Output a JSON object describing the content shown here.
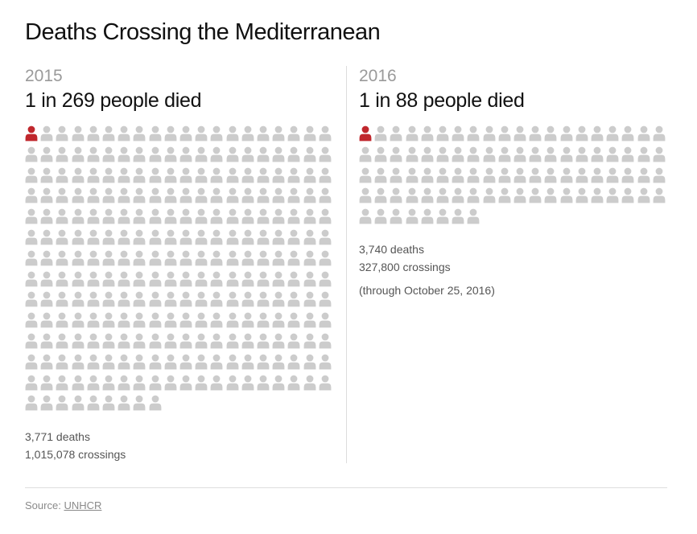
{
  "title": "Deaths Crossing the Mediterranean",
  "colors": {
    "died": "#c0272d",
    "crossed": "#cccccc"
  },
  "panels": [
    {
      "year": "2015",
      "headline": "1 in 269 people died",
      "deaths_text": "3,771 deaths",
      "crossings_text": "1,015,078 crossings",
      "note": ""
    },
    {
      "year": "2016",
      "headline": "1 in 88 people died",
      "deaths_text": "3,740 deaths",
      "crossings_text": "327,800 crossings",
      "note": "(through October 25, 2016)"
    }
  ],
  "source": {
    "label": "Source:",
    "link": "UNHCR"
  },
  "chart_data": [
    {
      "type": "pictograph",
      "title": "2015",
      "unit": "person",
      "total_icons": 269,
      "highlighted_icons": 1,
      "columns": 20,
      "deaths": 3771,
      "crossings": 1015078
    },
    {
      "type": "pictograph",
      "title": "2016",
      "unit": "person",
      "total_icons": 88,
      "highlighted_icons": 1,
      "columns": 20,
      "deaths": 3740,
      "crossings": 327800
    }
  ]
}
